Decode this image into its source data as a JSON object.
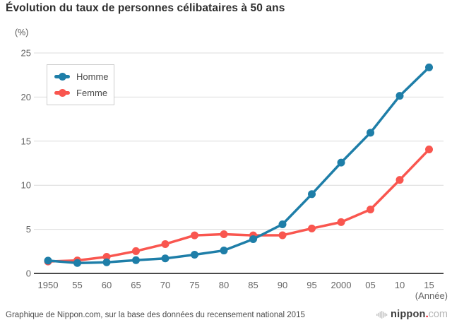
{
  "title": "Évolution du taux de personnes célibataires à 50 ans",
  "footer": {
    "source": "Graphique de Nippon.com, sur la base des données du recensement national 2015",
    "logo": {
      "name": "nippon",
      "dot": ".",
      "tld": "com"
    }
  },
  "colors": {
    "homme": "#1e7ea8",
    "femme": "#f9564f",
    "grid": "#dcdcdc",
    "axis": "#4a4a4a",
    "tick_label": "#666666",
    "logo_dot_red": "#e60012",
    "logo_bars_gray": "#c8c8c8"
  },
  "chart_data": {
    "type": "line",
    "title": "Évolution du taux de personnes célibataires à 50 ans",
    "ylabel": "(%)",
    "xlabel": "(Année)",
    "categories": [
      "1950",
      "55",
      "60",
      "65",
      "70",
      "75",
      "80",
      "85",
      "90",
      "95",
      "2000",
      "05",
      "10",
      "15"
    ],
    "series": [
      {
        "name": "Homme",
        "color": "#1e7ea8",
        "values": [
          1.45,
          1.18,
          1.26,
          1.5,
          1.7,
          2.12,
          2.6,
          3.89,
          5.57,
          8.99,
          12.57,
          15.96,
          20.14,
          23.37
        ]
      },
      {
        "name": "Femme",
        "color": "#f9564f",
        "values": [
          1.35,
          1.47,
          1.88,
          2.53,
          3.33,
          4.32,
          4.45,
          4.32,
          4.33,
          5.1,
          5.82,
          7.25,
          10.61,
          14.06
        ]
      }
    ],
    "ylim": [
      0,
      25
    ],
    "yticks": [
      0,
      5,
      10,
      15,
      20,
      25
    ],
    "grid": true,
    "legend_position": "upper-left"
  }
}
